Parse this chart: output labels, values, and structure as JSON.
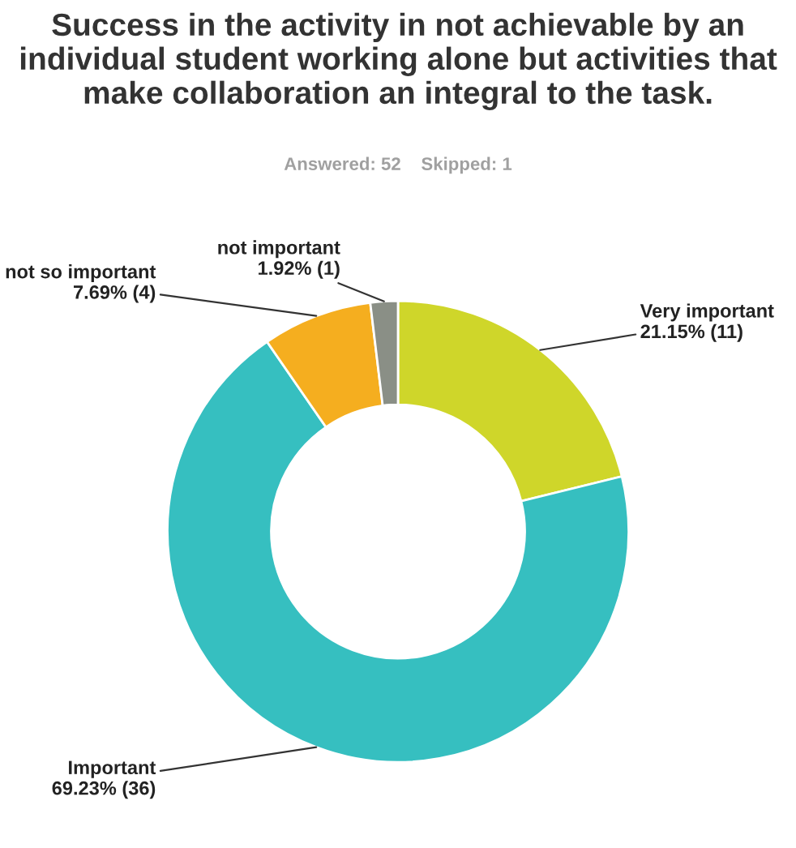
{
  "chart_data": {
    "type": "donut",
    "title": "Success in the activity in not achievable by an individual student working alone but activities that make collaboration an integral to the task.",
    "subtitle": "Answered: 52    Skipped: 1",
    "categories": [
      "Very important",
      "Important",
      "not so important",
      "not important"
    ],
    "values": [
      11,
      36,
      4,
      1
    ],
    "value_labels": [
      "21.15% (11)",
      "69.23% (36)",
      "7.69% (4)",
      "1.92% (1)"
    ],
    "colors": [
      "#cfd62a",
      "#36bfc0",
      "#f5ae1f",
      "#8a8f86"
    ],
    "legend": false
  }
}
